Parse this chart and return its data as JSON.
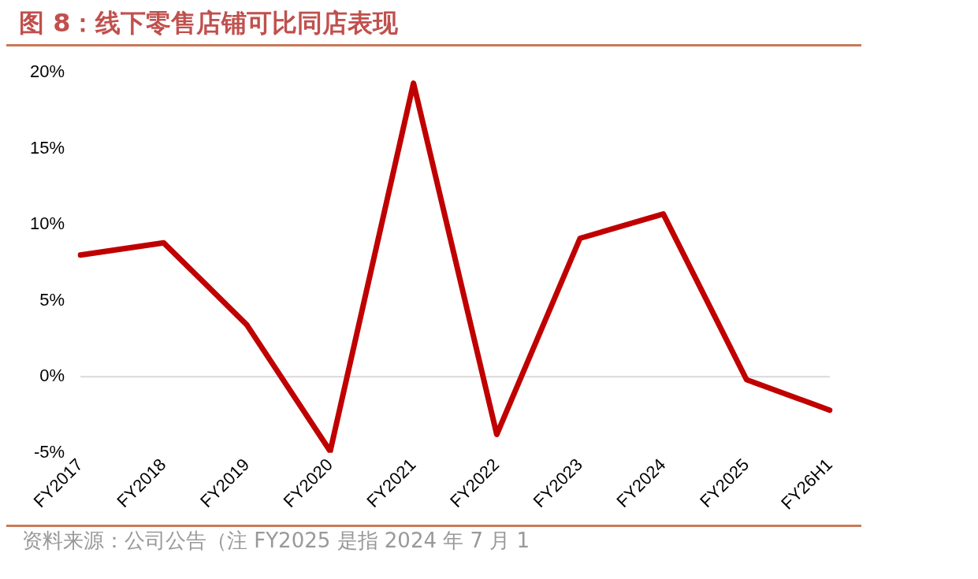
{
  "chart_data": {
    "type": "line",
    "title": "图 8：线下零售店铺可比同店表现",
    "categories": [
      "FY2017",
      "FY2018",
      "FY2019",
      "FY2020",
      "FY2021",
      "FY2022",
      "FY2023",
      "FY2024",
      "FY2025",
      "FY26H1"
    ],
    "series": [
      {
        "color": "#c00000",
        "values": [
          8.0,
          8.8,
          3.4,
          -4.9,
          19.3,
          -3.8,
          9.1,
          10.7,
          -0.2,
          -2.2
        ]
      }
    ],
    "ylim": [
      -5,
      20
    ],
    "yticks": [
      {
        "value": -5,
        "label": "-5%"
      },
      {
        "value": 0,
        "label": "0%"
      },
      {
        "value": 5,
        "label": "5%"
      },
      {
        "value": 10,
        "label": "10%"
      },
      {
        "value": 15,
        "label": "15%"
      },
      {
        "value": 20,
        "label": "20%"
      }
    ],
    "grid": false,
    "ref_lines": [
      {
        "axis": "y",
        "value": 0,
        "color": "#d9d9d9"
      }
    ],
    "legend": false,
    "marker": "none",
    "line_style": "solid",
    "annotations": [
      "资料来源：公司公告（注 FY2025 是指 2024 年 7 月 1"
    ]
  }
}
